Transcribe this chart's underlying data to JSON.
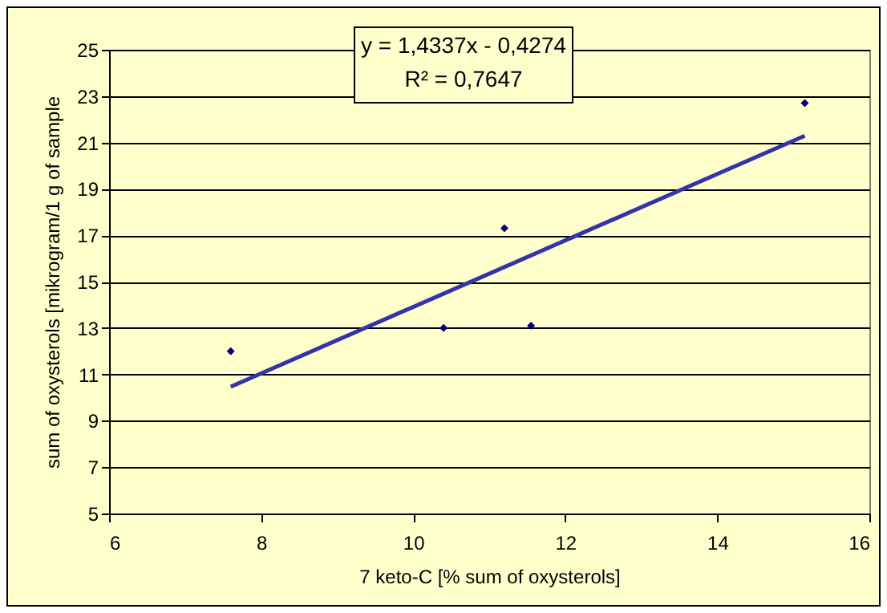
{
  "chart_data": {
    "type": "scatter",
    "xlabel": "7 keto-C [% sum of oxysterols]",
    "ylabel": "sum of oxysterols [mikrogram/1  g of sample",
    "annotations": [
      "y = 1,4337x - 0,4274",
      "R² = 0,7647"
    ],
    "series": [
      {
        "color": "#000080",
        "marker": "diamond",
        "x": [
          7.6,
          10.4,
          11.2,
          11.55,
          15.15
        ],
        "values": [
          12.0,
          13.0,
          17.3,
          13.1,
          22.7
        ]
      },
      {
        "type": "line",
        "marker": "none",
        "color": "#3333aa",
        "x": [
          7.6,
          15.15
        ],
        "values": [
          10.47,
          21.29
        ]
      }
    ],
    "xlim": [
      6,
      16
    ],
    "xticks": [
      6,
      8,
      10,
      12,
      14,
      16
    ],
    "ylim": [
      5,
      25
    ],
    "yticks": [
      5,
      7,
      9,
      11,
      13,
      15,
      17,
      19,
      21,
      23,
      25
    ],
    "grid": "y"
  }
}
